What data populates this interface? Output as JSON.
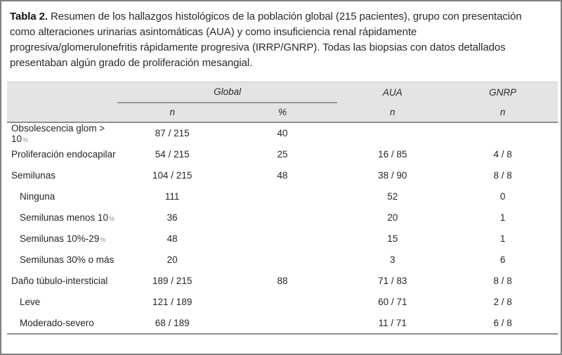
{
  "caption": {
    "label": "Tabla 2.",
    "lines": [
      "Resumen de los hallazgos histológicos de la población global (215 pacientes), grupo con presentación",
      "como alteraciones urinarias asintomáticas (AUA) y como insuficiencia renal rápidamente",
      "progresiva/glomerulonefritis rápidamente progresiva (IRRP/GNRP). Todas las biopsias con datos detallados",
      "presentaban algún grado de proliferación mesangial."
    ]
  },
  "table": {
    "col_groups": {
      "global": "Global",
      "aua": "AUA",
      "gnrp": "GNRP"
    },
    "sub_headers": {
      "global_n": "n",
      "global_pct": "%",
      "aua_n": "n",
      "gnrp_n": "n"
    },
    "rows": [
      {
        "label": "Obsolescencia glom > 10",
        "suffix": "%",
        "indent": false,
        "global_n": "87 / 215",
        "global_pct": "40",
        "aua_n": "",
        "gnrp_n": ""
      },
      {
        "label": "Proliferación endocapilar",
        "suffix": "",
        "indent": false,
        "global_n": "54 / 215",
        "global_pct": "25",
        "aua_n": "16 / 85",
        "gnrp_n": "4 / 8"
      },
      {
        "label": "Semilunas",
        "suffix": "",
        "indent": false,
        "global_n": "104 / 215",
        "global_pct": "48",
        "aua_n": "38 / 90",
        "gnrp_n": "8 / 8"
      },
      {
        "label": "Ninguna",
        "suffix": "",
        "indent": true,
        "global_n": "111",
        "global_pct": "",
        "aua_n": "52",
        "gnrp_n": "0"
      },
      {
        "label": "Semilunas menos 10",
        "suffix": "%",
        "indent": true,
        "global_n": "36",
        "global_pct": "",
        "aua_n": "20",
        "gnrp_n": "1"
      },
      {
        "label": "Semilunas 10%-29",
        "suffix": "%",
        "indent": true,
        "global_n": "48",
        "global_pct": "",
        "aua_n": "15",
        "gnrp_n": "1"
      },
      {
        "label": "Semilunas 30% o más",
        "suffix": "",
        "indent": true,
        "global_n": "20",
        "global_pct": "",
        "aua_n": "3",
        "gnrp_n": "6"
      },
      {
        "label": "Daño túbulo-intersticial",
        "suffix": "",
        "indent": false,
        "global_n": "189 / 215",
        "global_pct": "88",
        "aua_n": "71 / 83",
        "gnrp_n": "8 / 8"
      },
      {
        "label": "Leve",
        "suffix": "",
        "indent": true,
        "global_n": "121 / 189",
        "global_pct": "",
        "aua_n": "60 / 71",
        "gnrp_n": "2 / 8"
      },
      {
        "label": "Moderado-severo",
        "suffix": "",
        "indent": true,
        "global_n": "68 / 189",
        "global_pct": "",
        "aua_n": "11 / 71",
        "gnrp_n": "6 / 8"
      }
    ]
  },
  "colors": {
    "header_background": "#e4e4e4",
    "rule_gray": "#8f8f8f",
    "group_underline": "#9a9a9a",
    "outer_border": "#808080",
    "text": "#262626",
    "small_percent": "#8f8f8f"
  }
}
